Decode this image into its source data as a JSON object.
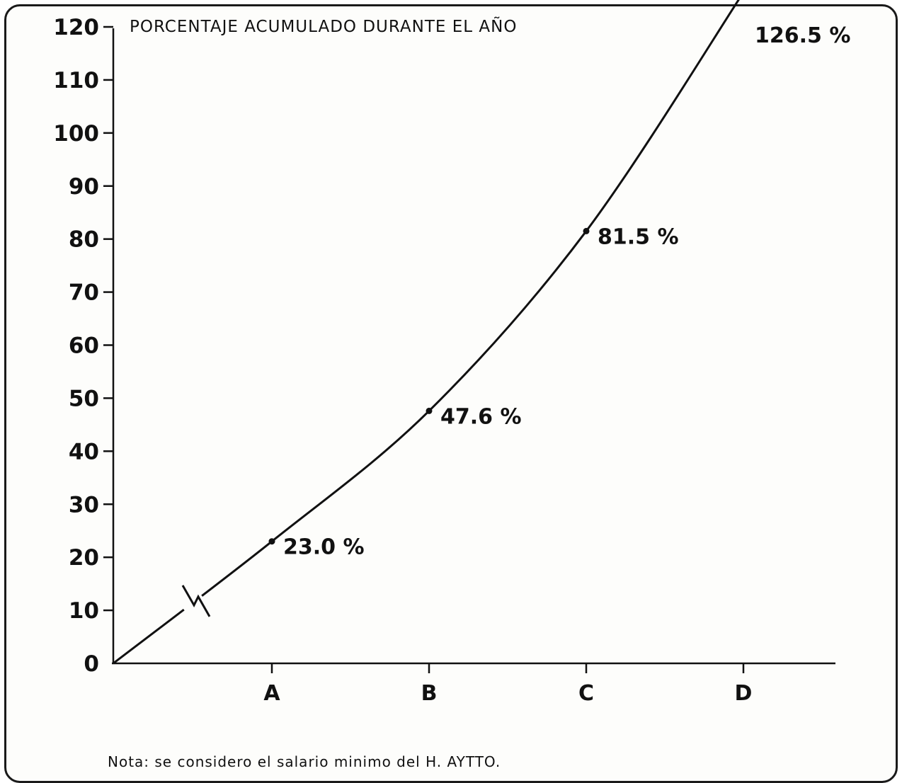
{
  "chart_data": {
    "type": "line",
    "title": "PORCENTAJE ACUMULADO DURANTE EL AÑO",
    "xlabel": "",
    "ylabel": "",
    "categories": [
      "A",
      "B",
      "C",
      "D"
    ],
    "ylim": [
      0,
      120
    ],
    "yticks": [
      0,
      10,
      20,
      30,
      40,
      50,
      60,
      70,
      80,
      90,
      100,
      110,
      120
    ],
    "series": [
      {
        "values": [
          23.0,
          47.6,
          81.5,
          126.5
        ],
        "labels": [
          "23.0 %",
          "47.6 %",
          "81.5 %",
          "126.5 %"
        ]
      }
    ],
    "origin": {
      "category": "",
      "value": 0
    },
    "axis_break": true,
    "grid": false,
    "color": "#111111"
  },
  "note": "Nota: se considero el salario minimo del H. AYTTO."
}
